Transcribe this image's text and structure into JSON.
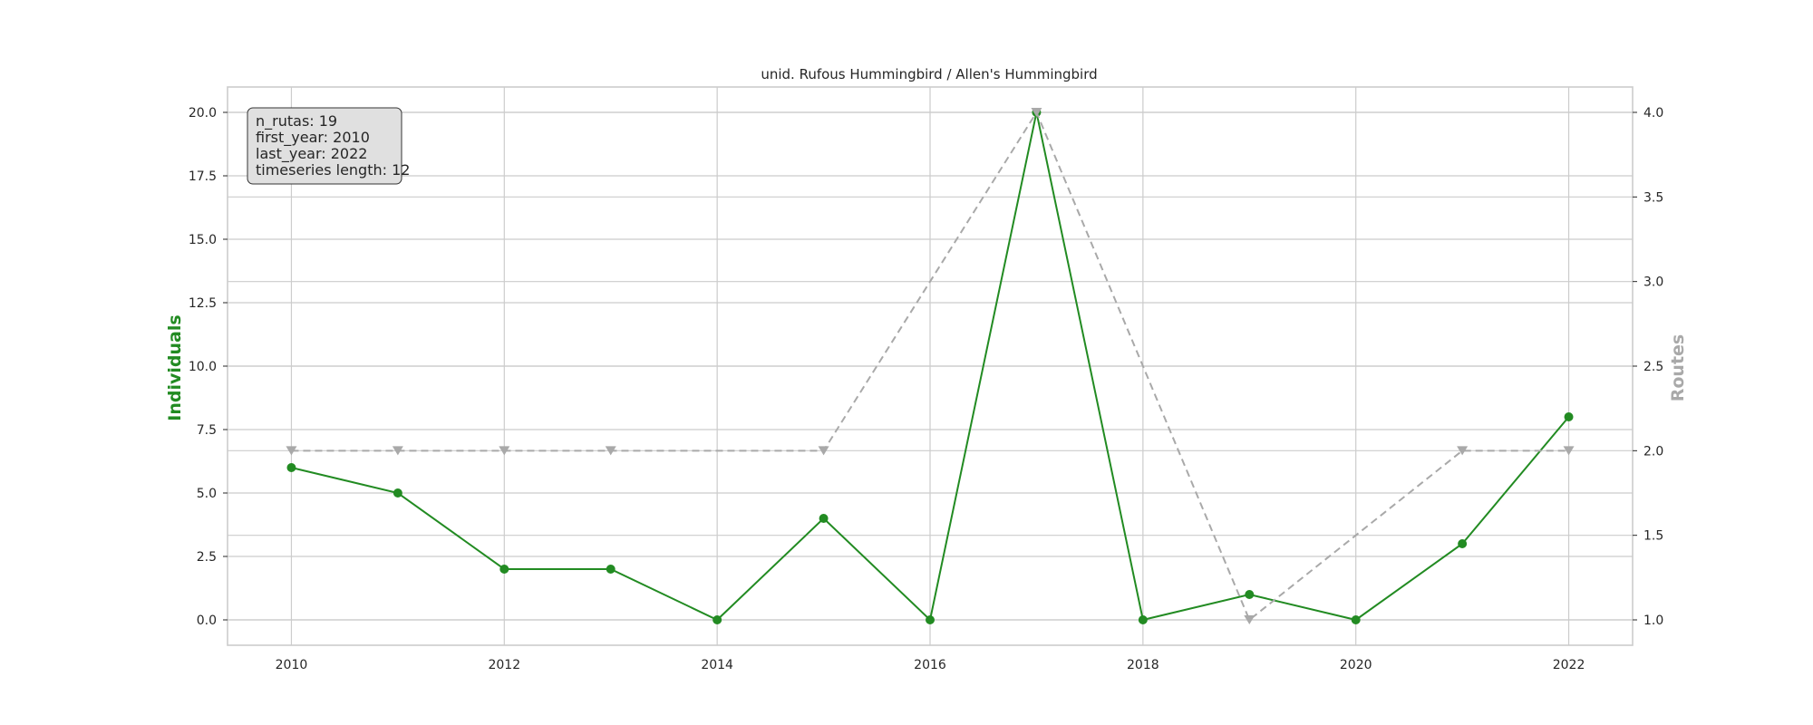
{
  "chart_data": {
    "type": "line",
    "title": "unid. Rufous Hummingbird / Allen's Hummingbird",
    "x": [
      2010,
      2011,
      2012,
      2013,
      2014,
      2015,
      2016,
      2017,
      2018,
      2019,
      2020,
      2021,
      2022
    ],
    "x_ticks": [
      2010,
      2012,
      2014,
      2016,
      2018,
      2020,
      2022
    ],
    "xlim": [
      2009.4,
      2022.6
    ],
    "ylabel_left": "Individuals",
    "ylabel_right": "Routes",
    "ylim_left": [
      -1,
      21
    ],
    "ylim_right": [
      0.85,
      4.15
    ],
    "yticks_left": [
      "0.0",
      "2.5",
      "5.0",
      "7.5",
      "10.0",
      "12.5",
      "15.0",
      "17.5",
      "20.0"
    ],
    "yticks_right": [
      "1.0",
      "1.5",
      "2.0",
      "2.5",
      "3.0",
      "3.5",
      "4.0"
    ],
    "grid": true,
    "series": [
      {
        "name": "Individuals",
        "axis": "left",
        "color": "#228b22",
        "marker": "circle",
        "linestyle": "solid",
        "values": [
          6,
          5,
          2,
          2,
          0,
          4,
          0,
          20,
          0,
          1,
          0,
          3,
          8
        ]
      },
      {
        "name": "Routes",
        "axis": "right",
        "color": "#a9a9a9",
        "marker": "triangle-down",
        "linestyle": "dashed",
        "x": [
          2010,
          2011,
          2012,
          2013,
          2015,
          2017,
          2019,
          2021,
          2022
        ],
        "values": [
          2,
          2,
          2,
          2,
          2,
          4,
          1,
          2,
          2
        ]
      }
    ],
    "info_box": {
      "lines": [
        "n_rutas: 19",
        "first_year: 2010",
        "last_year: 2022",
        "timeseries length: 12"
      ],
      "placement": "top-left"
    }
  }
}
